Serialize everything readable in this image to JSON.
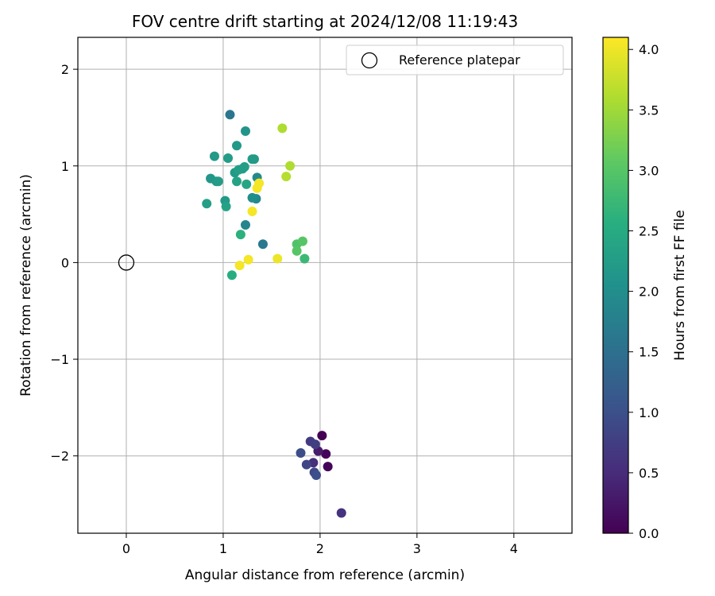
{
  "chart_data": {
    "type": "scatter",
    "title": "FOV centre drift starting at 2024/12/08 11:19:43",
    "xlabel": "Angular distance from reference (arcmin)",
    "ylabel": "Rotation from reference (arcmin)",
    "xlim": [
      -0.5,
      4.6
    ],
    "ylim": [
      -2.8,
      2.33
    ],
    "xticks": [
      0,
      1,
      2,
      3,
      4
    ],
    "yticks": [
      -2,
      -1,
      0,
      1,
      2
    ],
    "grid": true,
    "legend": {
      "position": "top-right",
      "entries": [
        "Reference platepar"
      ]
    },
    "reference_point": {
      "x": 0,
      "y": 0
    },
    "colorbar": {
      "label": "Hours from first FF file",
      "range": [
        0.0,
        4.1
      ],
      "ticks": [
        "0.0",
        "0.5",
        "1.0",
        "1.5",
        "2.0",
        "2.5",
        "3.0",
        "3.5",
        "4.0"
      ],
      "colormap": "viridis"
    },
    "points": [
      {
        "x": 2.02,
        "y": -1.79,
        "c": 0.0
      },
      {
        "x": 2.06,
        "y": -1.98,
        "c": 0.05
      },
      {
        "x": 2.08,
        "y": -2.11,
        "c": 0.05
      },
      {
        "x": 1.98,
        "y": -1.95,
        "c": 0.3
      },
      {
        "x": 1.93,
        "y": -2.07,
        "c": 0.55
      },
      {
        "x": 2.22,
        "y": -2.59,
        "c": 0.6
      },
      {
        "x": 1.9,
        "y": -1.85,
        "c": 0.7
      },
      {
        "x": 1.95,
        "y": -1.88,
        "c": 0.75
      },
      {
        "x": 1.86,
        "y": -2.09,
        "c": 0.85
      },
      {
        "x": 1.8,
        "y": -1.97,
        "c": 0.95
      },
      {
        "x": 1.94,
        "y": -2.17,
        "c": 0.9
      },
      {
        "x": 1.96,
        "y": -2.2,
        "c": 1.0
      },
      {
        "x": 1.07,
        "y": 1.53,
        "c": 1.6
      },
      {
        "x": 1.41,
        "y": 0.19,
        "c": 1.65
      },
      {
        "x": 1.23,
        "y": 0.39,
        "c": 1.85
      },
      {
        "x": 1.34,
        "y": 0.66,
        "c": 1.9
      },
      {
        "x": 1.35,
        "y": 0.88,
        "c": 1.95
      },
      {
        "x": 1.3,
        "y": 0.67,
        "c": 2.0
      },
      {
        "x": 1.23,
        "y": 1.36,
        "c": 2.1
      },
      {
        "x": 1.14,
        "y": 1.21,
        "c": 2.2
      },
      {
        "x": 0.91,
        "y": 1.1,
        "c": 2.2
      },
      {
        "x": 1.05,
        "y": 1.08,
        "c": 2.25
      },
      {
        "x": 1.3,
        "y": 1.07,
        "c": 2.25
      },
      {
        "x": 1.32,
        "y": 1.07,
        "c": 2.2
      },
      {
        "x": 1.22,
        "y": 0.99,
        "c": 2.3
      },
      {
        "x": 1.2,
        "y": 0.97,
        "c": 2.25
      },
      {
        "x": 1.12,
        "y": 0.93,
        "c": 2.2
      },
      {
        "x": 1.16,
        "y": 0.96,
        "c": 2.3
      },
      {
        "x": 0.87,
        "y": 0.87,
        "c": 2.15
      },
      {
        "x": 0.93,
        "y": 0.84,
        "c": 2.2
      },
      {
        "x": 0.95,
        "y": 0.84,
        "c": 2.25
      },
      {
        "x": 1.14,
        "y": 0.84,
        "c": 2.35
      },
      {
        "x": 1.24,
        "y": 0.81,
        "c": 2.4
      },
      {
        "x": 1.02,
        "y": 0.64,
        "c": 2.2
      },
      {
        "x": 0.83,
        "y": 0.61,
        "c": 2.3
      },
      {
        "x": 1.03,
        "y": 0.58,
        "c": 2.35
      },
      {
        "x": 1.18,
        "y": 0.29,
        "c": 2.6
      },
      {
        "x": 1.09,
        "y": -0.13,
        "c": 2.55
      },
      {
        "x": 1.84,
        "y": 0.04,
        "c": 2.75
      },
      {
        "x": 1.76,
        "y": 0.19,
        "c": 2.95
      },
      {
        "x": 1.82,
        "y": 0.22,
        "c": 3.0
      },
      {
        "x": 1.76,
        "y": 0.12,
        "c": 3.0
      },
      {
        "x": 1.61,
        "y": 1.39,
        "c": 3.6
      },
      {
        "x": 1.69,
        "y": 1.0,
        "c": 3.6
      },
      {
        "x": 1.65,
        "y": 0.89,
        "c": 3.65
      },
      {
        "x": 1.37,
        "y": 0.82,
        "c": 4.05
      },
      {
        "x": 1.35,
        "y": 0.77,
        "c": 4.05
      },
      {
        "x": 1.3,
        "y": 0.53,
        "c": 4.05
      },
      {
        "x": 1.56,
        "y": 0.04,
        "c": 4.0
      },
      {
        "x": 1.26,
        "y": 0.03,
        "c": 4.05
      },
      {
        "x": 1.17,
        "y": -0.03,
        "c": 4.05
      }
    ]
  }
}
